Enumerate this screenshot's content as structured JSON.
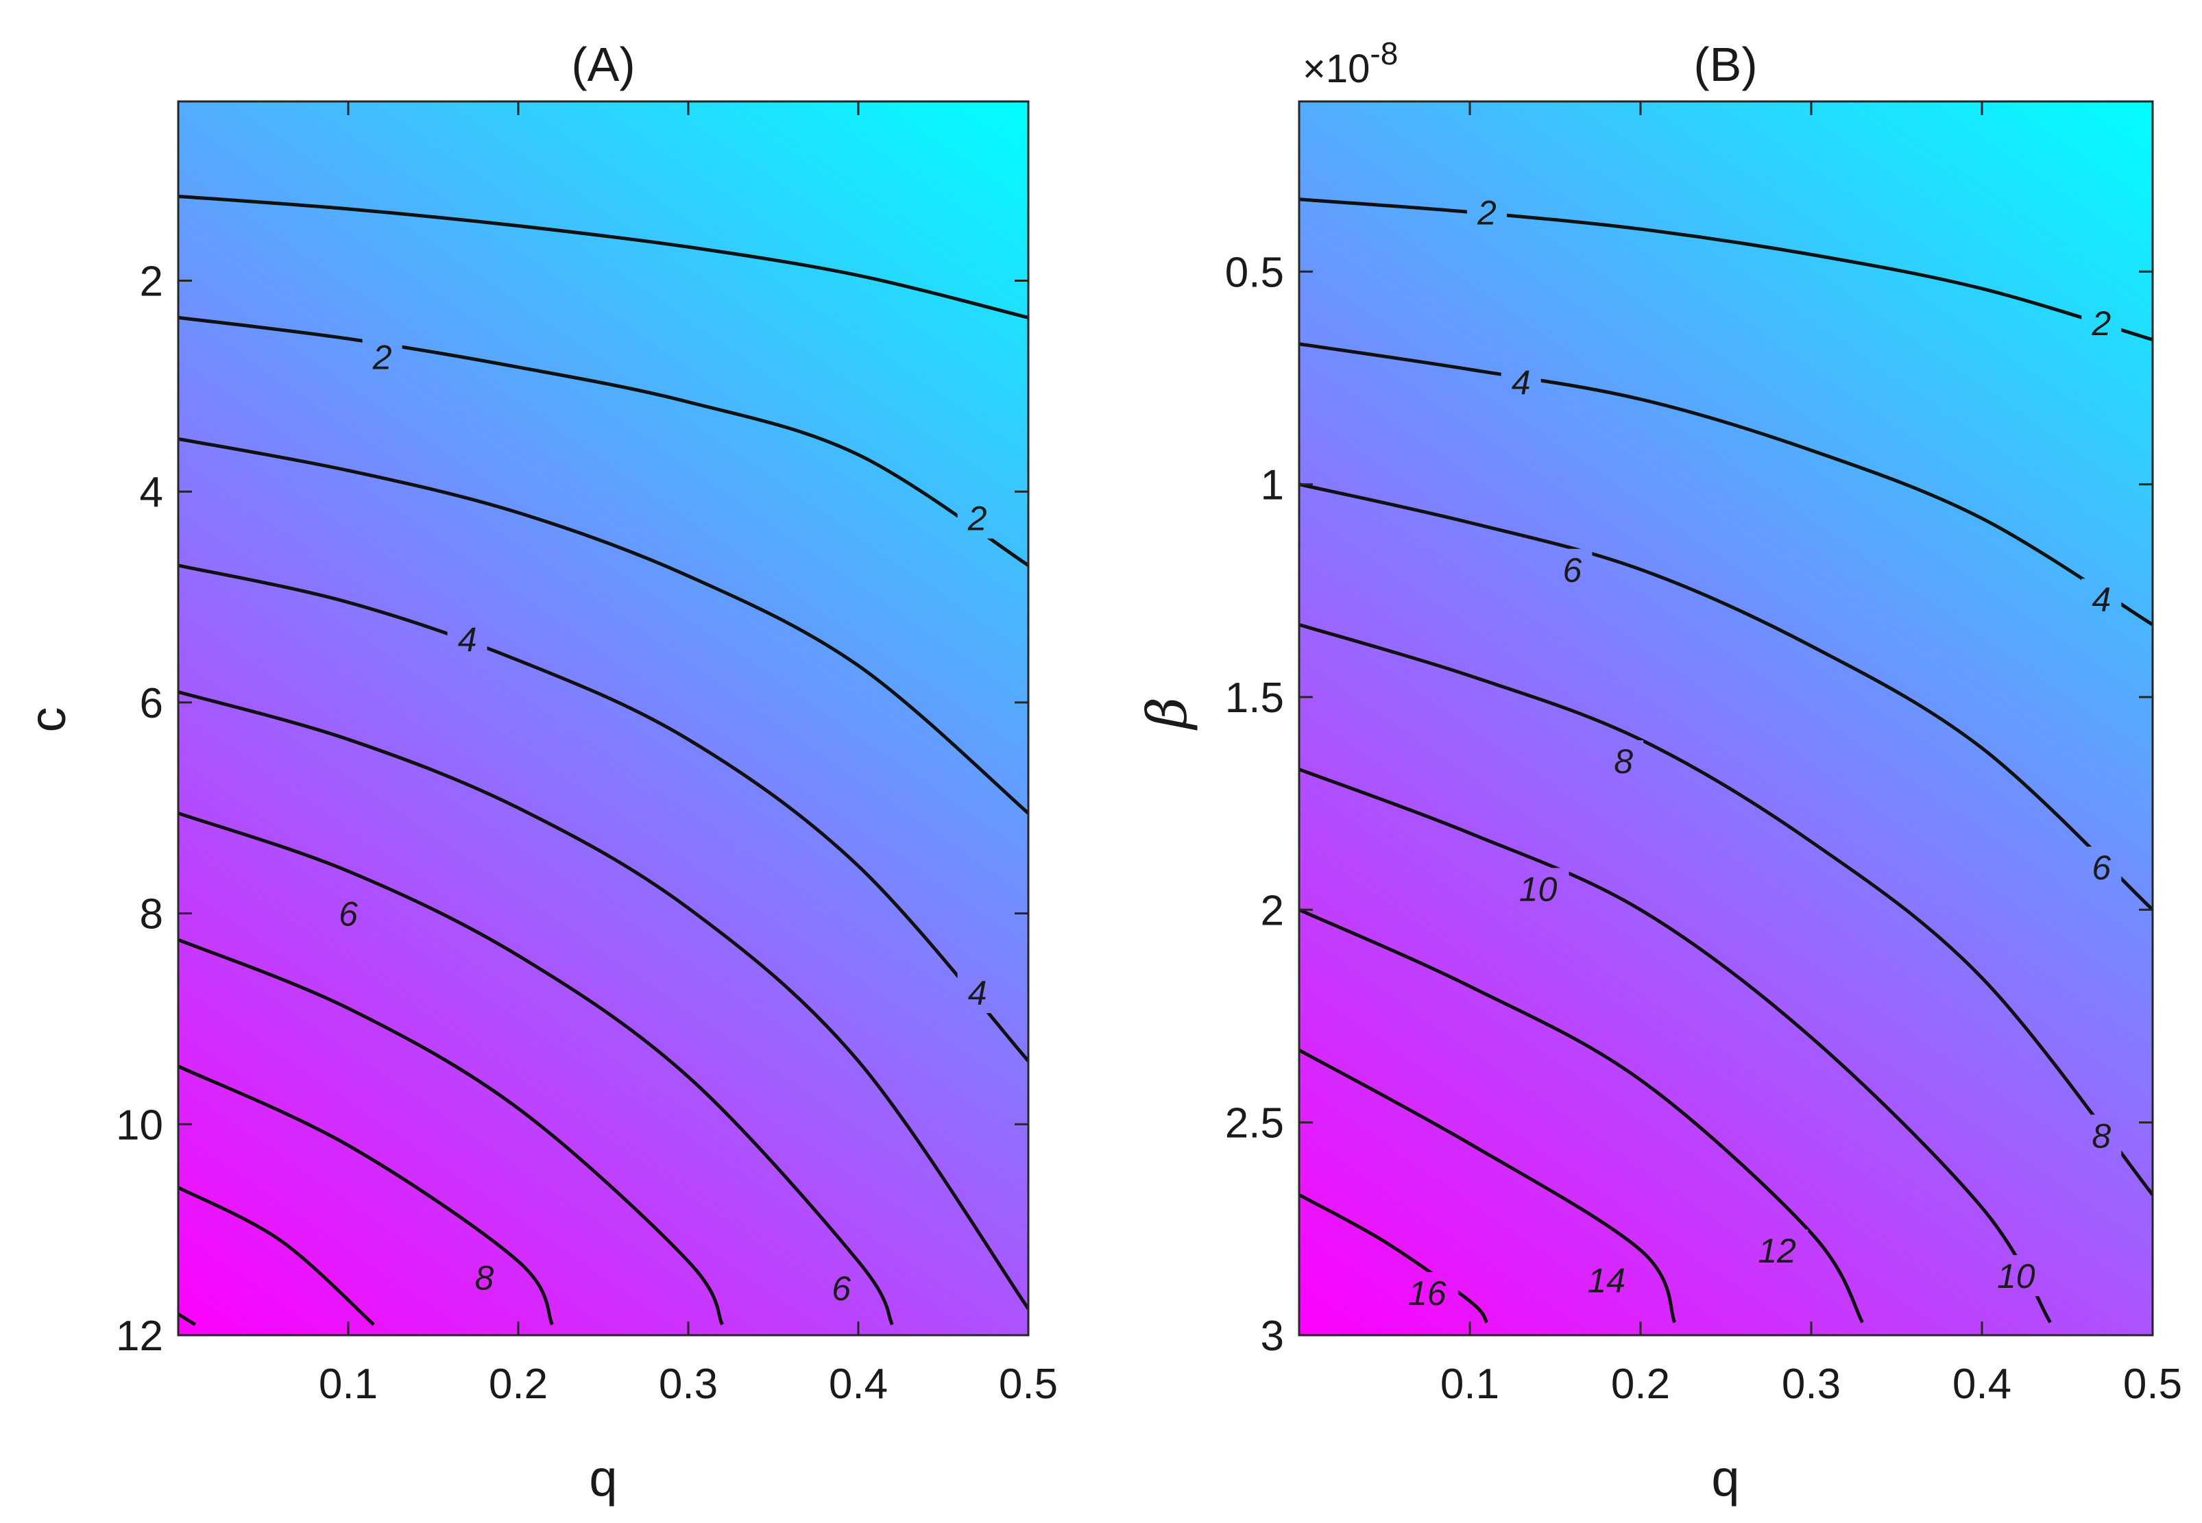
{
  "chart_data": [
    {
      "type": "contour",
      "title": "(A)",
      "xlabel": "q",
      "ylabel": "c",
      "xlim": [
        0,
        0.5
      ],
      "ylim": [
        12,
        0.3
      ],
      "y_reversed": true,
      "xticks": [
        0.1,
        0.2,
        0.3,
        0.4,
        0.5
      ],
      "xtick_labels": [
        "0.1",
        "0.2",
        "0.3",
        "0.4",
        "0.5"
      ],
      "yticks": [
        2,
        4,
        6,
        8,
        10,
        12
      ],
      "ytick_labels": [
        "2",
        "4",
        "6",
        "8",
        "10",
        "12"
      ],
      "colormap": {
        "low": "#00ffff",
        "high": "#ff00ff"
      },
      "contours": [
        {
          "level": 1,
          "label": "",
          "points": [
            [
              0,
              1.2
            ],
            [
              0.1,
              1.32
            ],
            [
              0.2,
              1.48
            ],
            [
              0.3,
              1.68
            ],
            [
              0.4,
              1.95
            ],
            [
              0.5,
              2.35
            ]
          ]
        },
        {
          "level": 2,
          "label": "2",
          "points": [
            [
              0,
              2.35
            ],
            [
              0.1,
              2.55
            ],
            [
              0.2,
              2.82
            ],
            [
              0.3,
              3.15
            ],
            [
              0.4,
              3.65
            ],
            [
              0.5,
              4.7
            ]
          ]
        },
        {
          "level": 3,
          "label": "",
          "points": [
            [
              0,
              3.5
            ],
            [
              0.1,
              3.8
            ],
            [
              0.2,
              4.2
            ],
            [
              0.3,
              4.8
            ],
            [
              0.4,
              5.65
            ],
            [
              0.5,
              7.05
            ]
          ]
        },
        {
          "level": 4,
          "label": "4",
          "points": [
            [
              0,
              4.7
            ],
            [
              0.1,
              5.05
            ],
            [
              0.2,
              5.6
            ],
            [
              0.3,
              6.35
            ],
            [
              0.4,
              7.55
            ],
            [
              0.5,
              9.4
            ]
          ]
        },
        {
          "level": 5,
          "label": "",
          "points": [
            [
              0,
              5.9
            ],
            [
              0.1,
              6.35
            ],
            [
              0.2,
              7.0
            ],
            [
              0.3,
              7.95
            ],
            [
              0.4,
              9.4
            ],
            [
              0.5,
              11.75
            ]
          ]
        },
        {
          "level": 6,
          "label": "6",
          "points": [
            [
              0,
              7.05
            ],
            [
              0.1,
              7.6
            ],
            [
              0.2,
              8.4
            ],
            [
              0.3,
              9.55
            ],
            [
              0.4,
              11.3
            ],
            [
              0.42,
              11.9
            ]
          ]
        },
        {
          "level": 7,
          "label": "",
          "points": [
            [
              0,
              8.25
            ],
            [
              0.1,
              8.9
            ],
            [
              0.2,
              9.85
            ],
            [
              0.3,
              11.3
            ],
            [
              0.32,
              11.9
            ]
          ]
        },
        {
          "level": 8,
          "label": "8",
          "points": [
            [
              0,
              9.45
            ],
            [
              0.1,
              10.2
            ],
            [
              0.2,
              11.3
            ],
            [
              0.22,
              11.9
            ]
          ]
        },
        {
          "level": 9,
          "label": "",
          "points": [
            [
              0,
              10.6
            ],
            [
              0.06,
              11.1
            ],
            [
              0.115,
              11.9
            ]
          ]
        },
        {
          "level": 10,
          "label": "",
          "points": [
            [
              0,
              11.8
            ],
            [
              0.01,
              11.9
            ]
          ]
        }
      ],
      "contour_labels": [
        {
          "text": "2",
          "x": 0.12,
          "y": 2.72
        },
        {
          "text": "2",
          "x": 0.47,
          "y": 4.25
        },
        {
          "text": "4",
          "x": 0.17,
          "y": 5.4
        },
        {
          "text": "4",
          "x": 0.47,
          "y": 8.75
        },
        {
          "text": "6",
          "x": 0.1,
          "y": 8.0
        },
        {
          "text": "6",
          "x": 0.39,
          "y": 11.55
        },
        {
          "text": "8",
          "x": 0.18,
          "y": 11.45
        }
      ]
    },
    {
      "type": "contour",
      "title": "(B)",
      "xlabel": "q",
      "ylabel": "β",
      "y_exponent": "×10^-8",
      "y_exponent_base": "×10",
      "y_exponent_power": "-8",
      "xlim": [
        0,
        0.5
      ],
      "ylim": [
        3,
        0.1
      ],
      "y_reversed": true,
      "xticks": [
        0.1,
        0.2,
        0.3,
        0.4,
        0.5
      ],
      "xtick_labels": [
        "0.1",
        "0.2",
        "0.3",
        "0.4",
        "0.5"
      ],
      "yticks": [
        0.5,
        1,
        1.5,
        2,
        2.5,
        3
      ],
      "ytick_labels": [
        "0.5",
        "1",
        "1.5",
        "2",
        "2.5",
        "3"
      ],
      "colormap": {
        "low": "#00ffff",
        "high": "#ff00ff"
      },
      "contours": [
        {
          "level": 2,
          "label": "2",
          "points": [
            [
              0,
              0.33
            ],
            [
              0.1,
              0.36
            ],
            [
              0.2,
              0.4
            ],
            [
              0.3,
              0.46
            ],
            [
              0.4,
              0.54
            ],
            [
              0.5,
              0.66
            ]
          ]
        },
        {
          "level": 4,
          "label": "4",
          "points": [
            [
              0,
              0.67
            ],
            [
              0.1,
              0.73
            ],
            [
              0.2,
              0.8
            ],
            [
              0.3,
              0.92
            ],
            [
              0.4,
              1.08
            ],
            [
              0.5,
              1.33
            ]
          ]
        },
        {
          "level": 6,
          "label": "6",
          "points": [
            [
              0,
              1.0
            ],
            [
              0.1,
              1.09
            ],
            [
              0.2,
              1.2
            ],
            [
              0.3,
              1.38
            ],
            [
              0.4,
              1.62
            ],
            [
              0.5,
              2.0
            ]
          ]
        },
        {
          "level": 8,
          "label": "8",
          "points": [
            [
              0,
              1.33
            ],
            [
              0.1,
              1.45
            ],
            [
              0.2,
              1.6
            ],
            [
              0.3,
              1.84
            ],
            [
              0.4,
              2.16
            ],
            [
              0.5,
              2.67
            ]
          ]
        },
        {
          "level": 10,
          "label": "10",
          "points": [
            [
              0,
              1.67
            ],
            [
              0.1,
              1.82
            ],
            [
              0.2,
              2.0
            ],
            [
              0.3,
              2.3
            ],
            [
              0.4,
              2.7
            ],
            [
              0.44,
              2.97
            ]
          ]
        },
        {
          "level": 12,
          "label": "12",
          "points": [
            [
              0,
              2.0
            ],
            [
              0.1,
              2.18
            ],
            [
              0.2,
              2.4
            ],
            [
              0.3,
              2.76
            ],
            [
              0.33,
              2.97
            ]
          ]
        },
        {
          "level": 14,
          "label": "14",
          "points": [
            [
              0,
              2.33
            ],
            [
              0.1,
              2.55
            ],
            [
              0.2,
              2.8
            ],
            [
              0.22,
              2.97
            ]
          ]
        },
        {
          "level": 16,
          "label": "16",
          "points": [
            [
              0,
              2.67
            ],
            [
              0.05,
              2.78
            ],
            [
              0.1,
              2.92
            ],
            [
              0.11,
              2.97
            ]
          ]
        }
      ],
      "contour_labels": [
        {
          "text": "2",
          "x": 0.11,
          "y": 0.36
        },
        {
          "text": "2",
          "x": 0.47,
          "y": 0.62
        },
        {
          "text": "4",
          "x": 0.13,
          "y": 0.76
        },
        {
          "text": "4",
          "x": 0.47,
          "y": 1.27
        },
        {
          "text": "6",
          "x": 0.16,
          "y": 1.2
        },
        {
          "text": "6",
          "x": 0.47,
          "y": 1.9
        },
        {
          "text": "8",
          "x": 0.19,
          "y": 1.65
        },
        {
          "text": "8",
          "x": 0.47,
          "y": 2.53
        },
        {
          "text": "10",
          "x": 0.14,
          "y": 1.95
        },
        {
          "text": "10",
          "x": 0.42,
          "y": 2.86
        },
        {
          "text": "12",
          "x": 0.28,
          "y": 2.8
        },
        {
          "text": "14",
          "x": 0.18,
          "y": 2.87
        },
        {
          "text": "16",
          "x": 0.075,
          "y": 2.9
        }
      ]
    }
  ]
}
